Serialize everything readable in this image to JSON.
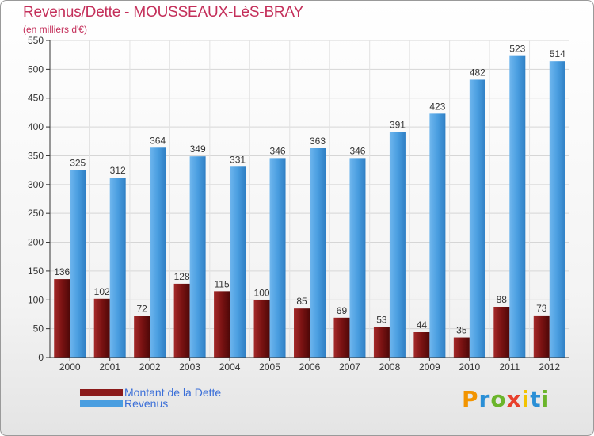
{
  "header": {
    "title": "Revenus/Dette - MOUSSEAUX-LèS-BRAY",
    "subtitle": "(en milliers d'€)"
  },
  "legend": [
    {
      "label": "Montant de la Dette",
      "color": "#8b1a1a"
    },
    {
      "label": "Revenus",
      "color": "#4a9ee0"
    }
  ],
  "logo": {
    "letters": [
      "P",
      "r",
      "o",
      "x",
      "i",
      "t",
      "i"
    ],
    "colors": [
      "#f29400",
      "#2a8fd6",
      "#6bb52b",
      "#e8402c",
      "#f2c300",
      "#2a8fd6",
      "#6bb52b"
    ]
  },
  "chart_data": {
    "type": "bar",
    "categories": [
      "2000",
      "2001",
      "2002",
      "2003",
      "2004",
      "2005",
      "2006",
      "2007",
      "2008",
      "2009",
      "2010",
      "2011",
      "2012"
    ],
    "series": [
      {
        "name": "Montant de la Dette",
        "values": [
          136,
          102,
          72,
          128,
          115,
          100,
          85,
          69,
          53,
          44,
          35,
          88,
          73
        ],
        "color": "#8b1a1a"
      },
      {
        "name": "Revenus",
        "values": [
          325,
          312,
          364,
          349,
          331,
          346,
          363,
          346,
          391,
          423,
          482,
          523,
          514
        ],
        "color": "#4a9ee0"
      }
    ],
    "ylim": [
      0,
      550
    ],
    "yticks": [
      0,
      50,
      100,
      150,
      200,
      250,
      300,
      350,
      400,
      450,
      500,
      550
    ],
    "grid": true,
    "legend_position": "bottom-left"
  }
}
